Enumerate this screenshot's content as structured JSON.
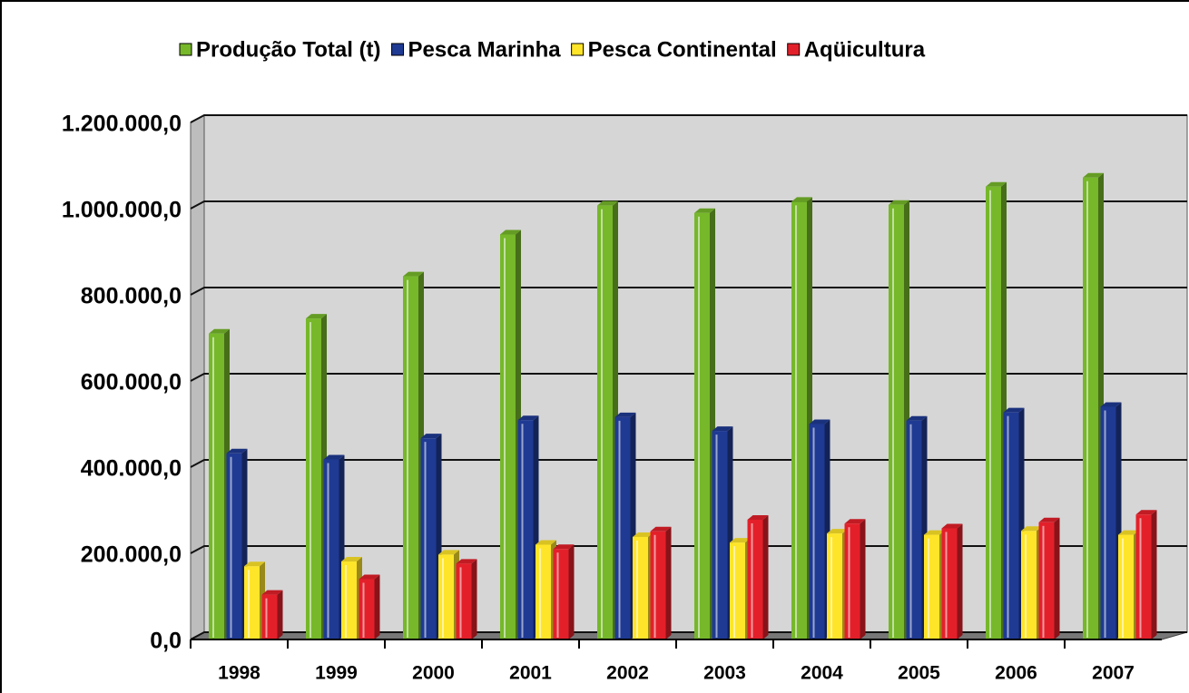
{
  "chart_data": {
    "type": "bar3d",
    "categories": [
      "1998",
      "1999",
      "2000",
      "2001",
      "2002",
      "2003",
      "2004",
      "2005",
      "2006",
      "2007"
    ],
    "series": [
      {
        "name": "Produção Total (t)",
        "color": "#76b82a",
        "values": [
          710000,
          745000,
          843000,
          940000,
          1007000,
          990000,
          1016000,
          1009000,
          1051000,
          1072000
        ]
      },
      {
        "name": "Pesca Marinha",
        "color": "#1f3a93",
        "values": [
          432000,
          418000,
          467000,
          509000,
          516000,
          484000,
          500000,
          508000,
          527000,
          540000
        ]
      },
      {
        "name": "Pesca Continental",
        "color": "#ffe529",
        "values": [
          170000,
          181000,
          197000,
          220000,
          238000,
          225000,
          246000,
          243000,
          252000,
          243000
        ]
      },
      {
        "name": "Aqüicultura",
        "color": "#e3202a",
        "values": [
          104000,
          140000,
          176000,
          210000,
          251000,
          278000,
          269000,
          258000,
          272000,
          290000
        ]
      }
    ],
    "ylim": [
      0,
      1200000
    ],
    "yticks": [
      {
        "value": 0,
        "label": "0,0"
      },
      {
        "value": 200000,
        "label": "200.000,0"
      },
      {
        "value": 400000,
        "label": "400.000,0"
      },
      {
        "value": 600000,
        "label": "600.000,0"
      },
      {
        "value": 800000,
        "label": "800.000,0"
      },
      {
        "value": 1000000,
        "label": "1.000.000,0"
      },
      {
        "value": 1200000,
        "label": "1.200.000,0"
      }
    ],
    "grid": true
  }
}
